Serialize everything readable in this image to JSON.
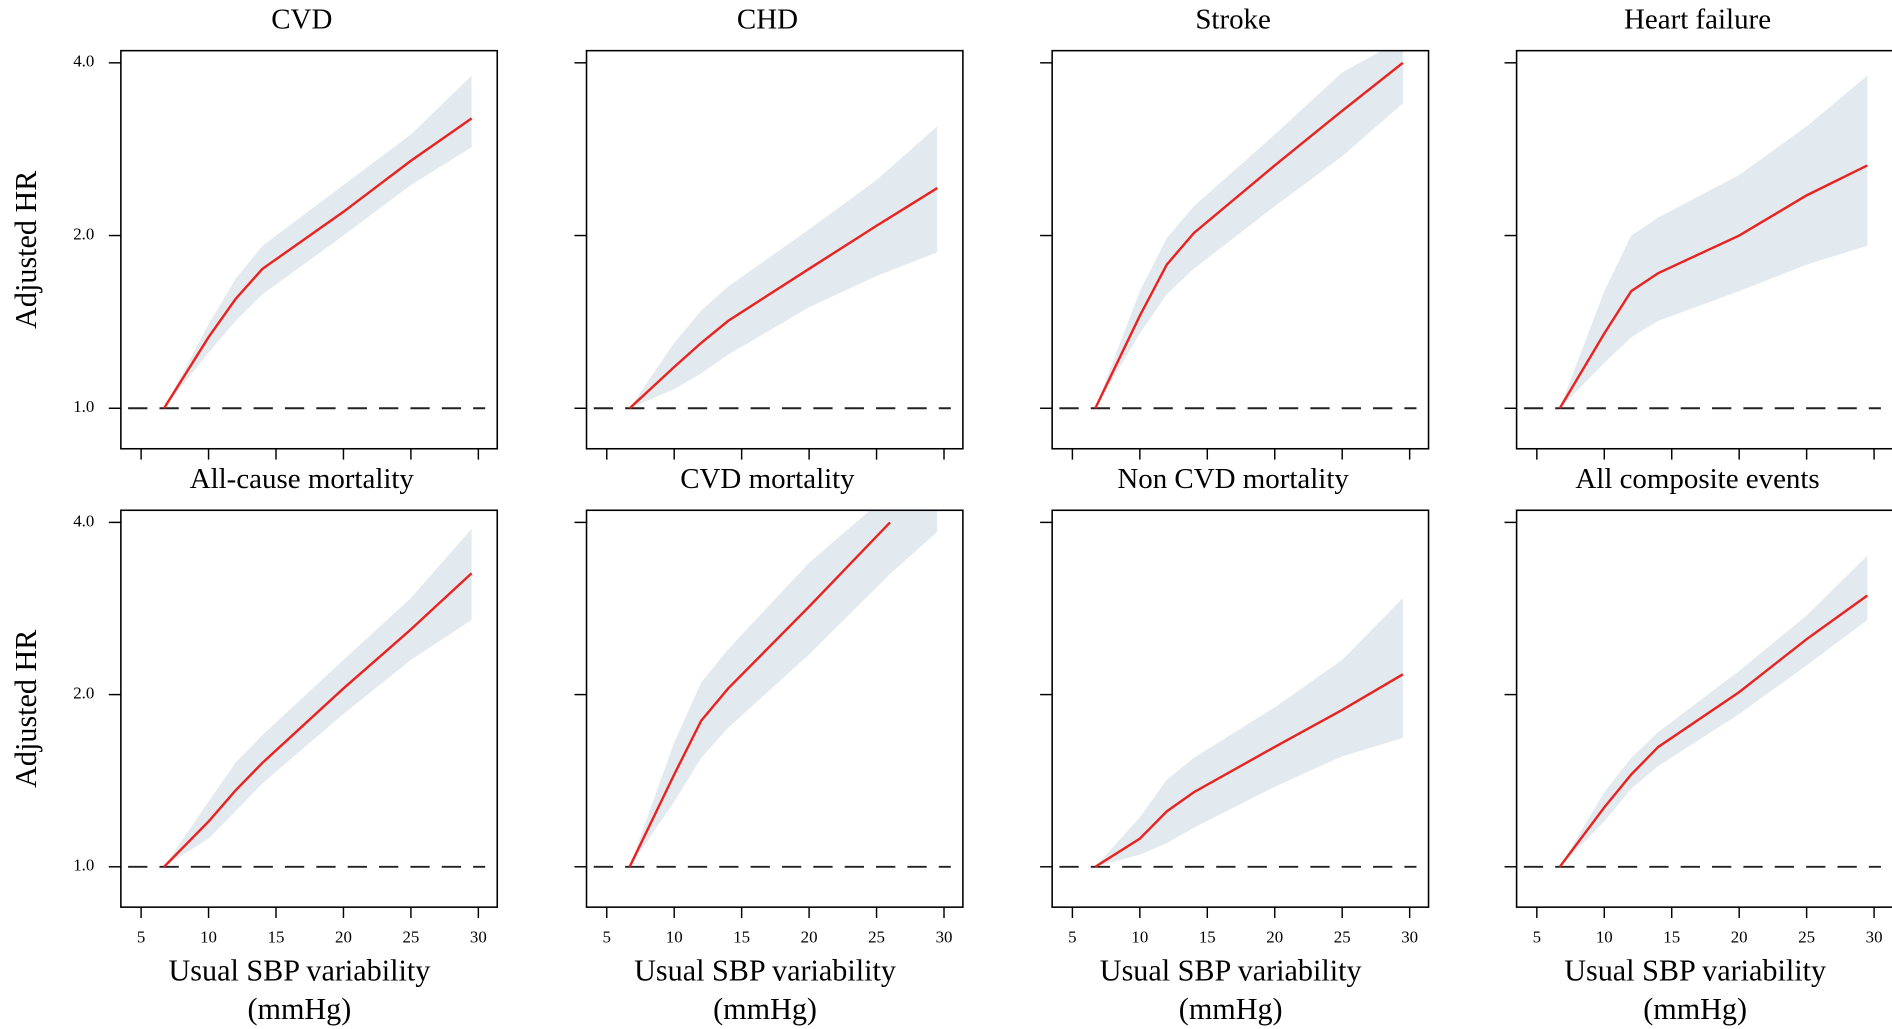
{
  "chart_data": [
    {
      "type": "line",
      "title": "CVD",
      "ylabel": "Adjusted HR",
      "x": [
        6.7,
        10,
        12,
        14,
        20,
        25,
        29.5
      ],
      "series": [
        {
          "color": "#e8231f",
          "values": [
            1.0,
            1.33,
            1.55,
            1.75,
            2.2,
            2.7,
            3.2
          ]
        }
      ],
      "band": {
        "color": "#e2e9ef",
        "lower": [
          1.0,
          1.25,
          1.42,
          1.58,
          2.0,
          2.45,
          2.85
        ],
        "upper": [
          1.0,
          1.4,
          1.68,
          1.92,
          2.45,
          3.0,
          3.8
        ]
      },
      "ref_line": 1,
      "xlim": [
        3.5,
        31.4
      ],
      "ylim": [
        0.85,
        4.2
      ],
      "log_y": true,
      "xtick_labels": false,
      "ytick_labels": true,
      "xticks": [
        5,
        10,
        15,
        20,
        25,
        30
      ],
      "yticks": [
        {
          "value": 1,
          "label": "1.0"
        },
        {
          "value": 2,
          "label": "2.0"
        },
        {
          "value": 4,
          "label": "4.0"
        }
      ]
    },
    {
      "type": "line",
      "title": "CHD",
      "x": [
        6.7,
        10,
        12,
        14,
        20,
        25,
        29.5
      ],
      "series": [
        {
          "color": "#e8231f",
          "values": [
            1.0,
            1.18,
            1.3,
            1.42,
            1.75,
            2.08,
            2.42
          ]
        }
      ],
      "band": {
        "color": "#e2e9ef",
        "lower": [
          1.0,
          1.08,
          1.15,
          1.24,
          1.5,
          1.7,
          1.87
        ],
        "upper": [
          1.0,
          1.3,
          1.48,
          1.63,
          2.05,
          2.5,
          3.1
        ]
      },
      "ref_line": 1,
      "xlim": [
        3.5,
        31.4
      ],
      "ylim": [
        0.85,
        4.2
      ],
      "log_y": true,
      "xtick_labels": false,
      "ytick_labels": false,
      "xticks": [
        5,
        10,
        15,
        20,
        25,
        30
      ],
      "yticks": [
        1,
        2,
        4
      ]
    },
    {
      "type": "line",
      "title": "Stroke",
      "x": [
        6.7,
        10,
        12,
        14,
        20,
        25,
        29.5
      ],
      "series": [
        {
          "color": "#e8231f",
          "values": [
            1.0,
            1.45,
            1.78,
            2.02,
            2.65,
            3.3,
            4.0
          ]
        }
      ],
      "band": {
        "color": "#e2e9ef",
        "lower": [
          1.0,
          1.35,
          1.58,
          1.75,
          2.25,
          2.75,
          3.4
        ],
        "upper": [
          1.0,
          1.6,
          1.98,
          2.25,
          3.0,
          3.85,
          4.4
        ]
      },
      "ref_line": 1,
      "xlim": [
        3.5,
        31.4
      ],
      "ylim": [
        0.85,
        4.2
      ],
      "log_y": true,
      "xtick_labels": false,
      "ytick_labels": false,
      "xticks": [
        5,
        10,
        15,
        20,
        25,
        30
      ],
      "yticks": [
        1,
        2,
        4
      ]
    },
    {
      "type": "line",
      "title": "Heart failure",
      "x": [
        6.7,
        10,
        12,
        14,
        20,
        25,
        29.5
      ],
      "series": [
        {
          "color": "#e8231f",
          "values": [
            1.0,
            1.35,
            1.6,
            1.72,
            2.0,
            2.35,
            2.65
          ]
        }
      ],
      "band": {
        "color": "#e2e9ef",
        "lower": [
          1.0,
          1.2,
          1.33,
          1.42,
          1.6,
          1.78,
          1.92
        ],
        "upper": [
          1.0,
          1.6,
          2.0,
          2.15,
          2.55,
          3.1,
          3.8
        ]
      },
      "ref_line": 1,
      "xlim": [
        3.5,
        31.4
      ],
      "ylim": [
        0.85,
        4.2
      ],
      "log_y": true,
      "xtick_labels": false,
      "ytick_labels": false,
      "xticks": [
        5,
        10,
        15,
        20,
        25,
        30
      ],
      "yticks": [
        1,
        2,
        4
      ]
    },
    {
      "type": "line",
      "title": "All-cause mortality",
      "ylabel": "Adjusted HR",
      "xlabel": [
        "Usual SBP variability",
        "(mmHg)"
      ],
      "x": [
        6.7,
        10,
        12,
        14,
        20,
        25,
        29.5
      ],
      "series": [
        {
          "color": "#e8231f",
          "values": [
            1.0,
            1.2,
            1.36,
            1.52,
            2.05,
            2.6,
            3.26
          ]
        }
      ],
      "band": {
        "color": "#e2e9ef",
        "lower": [
          1.0,
          1.12,
          1.25,
          1.4,
          1.85,
          2.3,
          2.7
        ],
        "upper": [
          1.0,
          1.3,
          1.52,
          1.7,
          2.3,
          2.95,
          3.9
        ]
      },
      "ref_line": 1,
      "xlim": [
        3.5,
        31.4
      ],
      "ylim": [
        0.85,
        4.2
      ],
      "log_y": true,
      "xtick_labels": true,
      "ytick_labels": true,
      "xticks": [
        5,
        10,
        15,
        20,
        25,
        30
      ],
      "yticks": [
        {
          "value": 1,
          "label": "1.0"
        },
        {
          "value": 2,
          "label": "2.0"
        },
        {
          "value": 4,
          "label": "4.0"
        }
      ]
    },
    {
      "type": "line",
      "title": "CVD mortality",
      "xlabel": [
        "Usual SBP variability",
        "(mmHg)"
      ],
      "x": [
        6.7,
        10,
        12,
        14,
        20,
        26,
        29.5
      ],
      "series": [
        {
          "color": "#e8231f",
          "values": [
            1.0,
            1.45,
            1.8,
            2.05,
            2.85,
            4.0,
            null
          ]
        }
      ],
      "band": {
        "color": "#e2e9ef",
        "lower": [
          1.0,
          1.3,
          1.55,
          1.75,
          2.35,
          3.25,
          3.85
        ],
        "upper": [
          1.0,
          1.65,
          2.1,
          2.4,
          3.4,
          4.5,
          4.5
        ]
      },
      "ref_line": 1,
      "xlim": [
        3.5,
        31.4
      ],
      "ylim": [
        0.85,
        4.2
      ],
      "log_y": true,
      "xtick_labels": true,
      "ytick_labels": false,
      "xticks": [
        5,
        10,
        15,
        20,
        25,
        30
      ],
      "yticks": [
        1,
        2,
        4
      ]
    },
    {
      "type": "line",
      "title": "Non CVD mortality",
      "xlabel": [
        "Usual SBP variability",
        "(mmHg)"
      ],
      "x": [
        6.7,
        10,
        12,
        14,
        20,
        25,
        29.5
      ],
      "series": [
        {
          "color": "#e8231f",
          "values": [
            1.0,
            1.12,
            1.25,
            1.35,
            1.62,
            1.88,
            2.17
          ]
        }
      ],
      "band": {
        "color": "#e2e9ef",
        "lower": [
          1.0,
          1.05,
          1.1,
          1.17,
          1.38,
          1.56,
          1.68
        ],
        "upper": [
          1.0,
          1.22,
          1.42,
          1.55,
          1.9,
          2.3,
          2.95
        ]
      },
      "ref_line": 1,
      "xlim": [
        3.5,
        31.4
      ],
      "ylim": [
        0.85,
        4.2
      ],
      "log_y": true,
      "xtick_labels": true,
      "ytick_labels": false,
      "xticks": [
        5,
        10,
        15,
        20,
        25,
        30
      ],
      "yticks": [
        1,
        2,
        4
      ]
    },
    {
      "type": "line",
      "title": "All composite events",
      "xlabel": [
        "Usual SBP variability",
        "(mmHg)"
      ],
      "x": [
        6.7,
        10,
        12,
        14,
        20,
        25,
        29.5
      ],
      "series": [
        {
          "color": "#e8231f",
          "values": [
            1.0,
            1.27,
            1.45,
            1.62,
            2.02,
            2.5,
            2.98
          ]
        }
      ],
      "band": {
        "color": "#e2e9ef",
        "lower": [
          1.0,
          1.2,
          1.37,
          1.5,
          1.85,
          2.25,
          2.7
        ],
        "upper": [
          1.0,
          1.35,
          1.55,
          1.72,
          2.2,
          2.75,
          3.5
        ]
      },
      "ref_line": 1,
      "xlim": [
        3.5,
        31.4
      ],
      "ylim": [
        0.85,
        4.2
      ],
      "log_y": true,
      "xtick_labels": true,
      "ytick_labels": false,
      "xticks": [
        5,
        10,
        15,
        20,
        25,
        30
      ],
      "yticks": [
        1,
        2,
        4
      ]
    }
  ]
}
